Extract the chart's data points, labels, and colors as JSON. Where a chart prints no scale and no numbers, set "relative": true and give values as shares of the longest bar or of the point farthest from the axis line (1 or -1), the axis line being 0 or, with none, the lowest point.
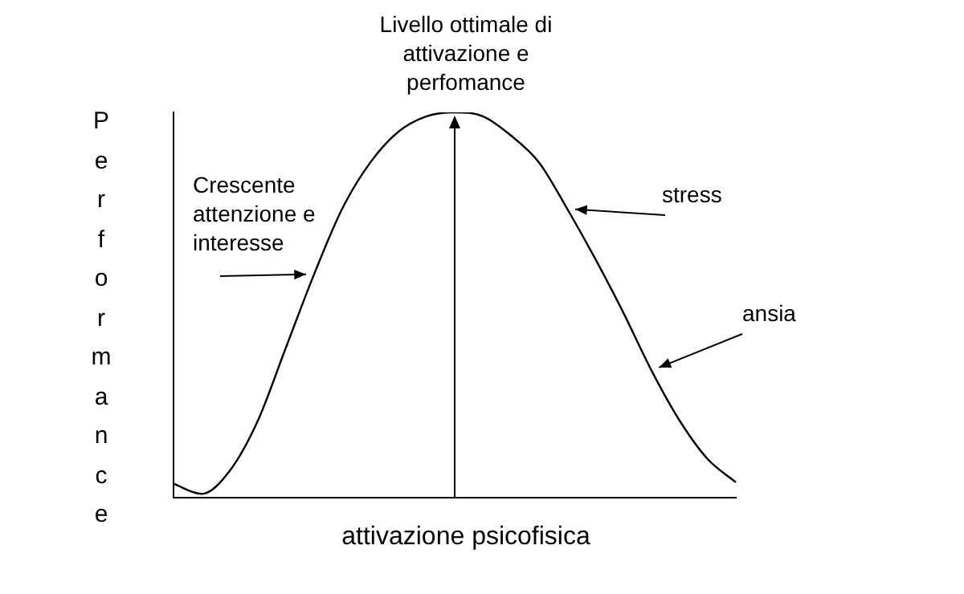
{
  "chart_data": {
    "type": "line",
    "title": "Livello ottimale di attivazione e perfomance",
    "xlabel": "attivazione psicofisica",
    "ylabel": "Performance",
    "relative": true,
    "marker": "none",
    "grid": false,
    "legend": false,
    "categories": [
      null,
      null,
      null,
      null,
      null,
      null,
      null,
      null,
      null,
      null,
      null,
      null,
      null,
      null,
      null,
      null,
      null,
      null,
      null,
      null,
      null
    ],
    "series": [
      {
        "color": "#000000",
        "values": [
          0.036,
          0.01,
          0.07,
          0.2,
          0.39,
          0.58,
          0.75,
          0.87,
          0.95,
          0.99,
          1,
          0.99,
          0.94,
          0.87,
          0.75,
          0.62,
          0.48,
          0.33,
          0.2,
          0.1,
          0.04
        ]
      }
    ],
    "annotations": [
      "Crescente attenzione e interesse",
      "stress",
      "ansia"
    ]
  }
}
